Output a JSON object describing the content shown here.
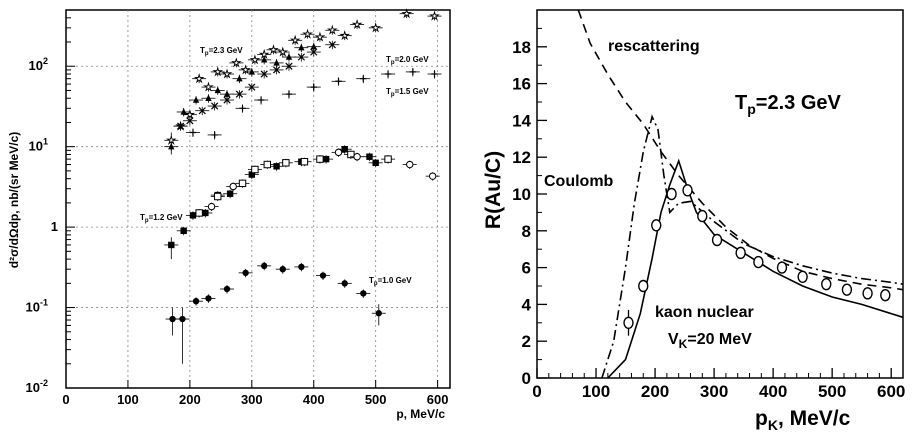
{
  "chart_data": [
    {
      "type": "scatter",
      "xlabel": "p, MeV/c",
      "ylabel": "d²σ/dΩdp, nb/(sr MeV/c)",
      "yscale": "log",
      "xlim": [
        0,
        620
      ],
      "ylim": [
        0.01,
        500
      ],
      "xticks": [
        "0",
        "100",
        "200",
        "300",
        "400",
        "500",
        "600"
      ],
      "yticks": [
        {
          "value": 0.01,
          "base": "10",
          "exp": "-2"
        },
        {
          "value": 0.1,
          "base": "10",
          "exp": "-1"
        },
        {
          "value": 1,
          "base": "1",
          "exp": ""
        },
        {
          "value": 10,
          "base": "10",
          "exp": "1"
        },
        {
          "value": 100,
          "base": "10",
          "exp": "2"
        }
      ],
      "grid": true,
      "series": [
        {
          "name": "Tp=2.3 GeV",
          "marker": "open-star",
          "points": [
            {
              "x": 170,
              "y": 12,
              "lo": 8,
              "hi": 15
            },
            {
              "x": 185,
              "y": 18
            },
            {
              "x": 200,
              "y": 25
            },
            {
              "x": 215,
              "y": 70
            },
            {
              "x": 230,
              "y": 55
            },
            {
              "x": 245,
              "y": 85
            },
            {
              "x": 260,
              "y": 80
            },
            {
              "x": 275,
              "y": 110
            },
            {
              "x": 290,
              "y": 90
            },
            {
              "x": 305,
              "y": 120
            },
            {
              "x": 320,
              "y": 140
            },
            {
              "x": 335,
              "y": 160
            },
            {
              "x": 350,
              "y": 150
            },
            {
              "x": 370,
              "y": 210
            },
            {
              "x": 390,
              "y": 250
            },
            {
              "x": 410,
              "y": 230
            },
            {
              "x": 430,
              "y": 280
            },
            {
              "x": 450,
              "y": 240
            },
            {
              "x": 470,
              "y": 330
            },
            {
              "x": 500,
              "y": 300
            },
            {
              "x": 550,
              "y": 450
            },
            {
              "x": 595,
              "y": 420
            }
          ]
        },
        {
          "name": "Tp=2.0 GeV",
          "marker": "filled-triangle",
          "points": [
            {
              "x": 170,
              "y": 10
            },
            {
              "x": 190,
              "y": 27
            },
            {
              "x": 210,
              "y": 38
            },
            {
              "x": 230,
              "y": 40
            },
            {
              "x": 245,
              "y": 50
            },
            {
              "x": 260,
              "y": 45
            },
            {
              "x": 280,
              "y": 70
            },
            {
              "x": 300,
              "y": 85
            },
            {
              "x": 320,
              "y": 120
            },
            {
              "x": 340,
              "y": 110
            },
            {
              "x": 360,
              "y": 130
            },
            {
              "x": 380,
              "y": 170
            },
            {
              "x": 400,
              "y": 175
            }
          ]
        },
        {
          "name": "Tp=1.5 GeV",
          "marker": "cross",
          "points": [
            {
              "x": 185,
              "y": 18
            },
            {
              "x": 200,
              "y": 21
            },
            {
              "x": 220,
              "y": 28
            },
            {
              "x": 240,
              "y": 32
            },
            {
              "x": 260,
              "y": 38
            },
            {
              "x": 280,
              "y": 45
            },
            {
              "x": 300,
              "y": 55
            },
            {
              "x": 320,
              "y": 80
            },
            {
              "x": 340,
              "y": 90
            },
            {
              "x": 360,
              "y": 100
            },
            {
              "x": 380,
              "y": 130
            },
            {
              "x": 400,
              "y": 150
            },
            {
              "x": 430,
              "y": 185
            }
          ]
        },
        {
          "name": "Tp=1.5 GeV (open cross)",
          "marker": "open-cross",
          "points": [
            {
              "x": 205,
              "y": 15
            },
            {
              "x": 240,
              "y": 14
            },
            {
              "x": 285,
              "y": 30
            },
            {
              "x": 315,
              "y": 38
            },
            {
              "x": 360,
              "y": 45
            },
            {
              "x": 400,
              "y": 55
            },
            {
              "x": 440,
              "y": 65
            },
            {
              "x": 480,
              "y": 70
            },
            {
              "x": 520,
              "y": 80
            },
            {
              "x": 560,
              "y": 85
            },
            {
              "x": 595,
              "y": 80
            }
          ]
        },
        {
          "name": "Tp=1.2 GeV",
          "marker": "filled-square",
          "points": [
            {
              "x": 170,
              "y": 0.6,
              "lo": 0.4,
              "hi": 0.75
            },
            {
              "x": 190,
              "y": 0.9
            },
            {
              "x": 205,
              "y": 1.4
            },
            {
              "x": 225,
              "y": 1.5
            },
            {
              "x": 245,
              "y": 2.5
            },
            {
              "x": 265,
              "y": 2.6
            },
            {
              "x": 300,
              "y": 4.5
            },
            {
              "x": 340,
              "y": 5.7
            },
            {
              "x": 380,
              "y": 6.5
            },
            {
              "x": 420,
              "y": 7.0
            },
            {
              "x": 450,
              "y": 9.3
            },
            {
              "x": 490,
              "y": 7.5
            },
            {
              "x": 500,
              "y": 6.3
            }
          ]
        },
        {
          "name": "Tp=1.2 GeV (open)",
          "marker": "open-square",
          "points": [
            {
              "x": 215,
              "y": 1.5
            },
            {
              "x": 245,
              "y": 2.4
            },
            {
              "x": 285,
              "y": 3.5
            },
            {
              "x": 305,
              "y": 5.2
            },
            {
              "x": 325,
              "y": 6.0
            },
            {
              "x": 355,
              "y": 6.3
            },
            {
              "x": 385,
              "y": 6.5
            },
            {
              "x": 410,
              "y": 7.0
            },
            {
              "x": 460,
              "y": 8.0
            },
            {
              "x": 520,
              "y": 7.0
            }
          ]
        },
        {
          "name": "Tp=1.2 GeV (open circle)",
          "marker": "open-circle",
          "points": [
            {
              "x": 235,
              "y": 1.8
            },
            {
              "x": 270,
              "y": 3.2
            },
            {
              "x": 440,
              "y": 8.5
            },
            {
              "x": 470,
              "y": 7.5
            },
            {
              "x": 555,
              "y": 6.0
            },
            {
              "x": 592,
              "y": 4.3
            }
          ]
        },
        {
          "name": "Tp=1.0 GeV",
          "marker": "filled-circle",
          "points": [
            {
              "x": 172,
              "y": 0.072,
              "lo": 0.045,
              "hi": 0.1
            },
            {
              "x": 188,
              "y": 0.072,
              "lo": 0.02,
              "hi": 0.1
            },
            {
              "x": 210,
              "y": 0.12
            },
            {
              "x": 230,
              "y": 0.13
            },
            {
              "x": 260,
              "y": 0.17
            },
            {
              "x": 290,
              "y": 0.27
            },
            {
              "x": 320,
              "y": 0.33
            },
            {
              "x": 350,
              "y": 0.3
            },
            {
              "x": 380,
              "y": 0.32
            },
            {
              "x": 415,
              "y": 0.25
            },
            {
              "x": 450,
              "y": 0.2
            },
            {
              "x": 480,
              "y": 0.15
            },
            {
              "x": 505,
              "y": 0.085,
              "lo": 0.06,
              "hi": 0.11
            }
          ]
        }
      ],
      "annotations": [
        {
          "text": "Tp=2.3 GeV",
          "x": 175,
          "y": 200
        },
        {
          "text": "Tp=2.0 GeV",
          "x": 440,
          "y": 150
        },
        {
          "text": "Tp=1.5 GeV",
          "x": 440,
          "y": 55
        },
        {
          "text": "Tp=1.2 GeV",
          "x": 95,
          "y": 1.35
        },
        {
          "text": "Tp=1.0 GeV",
          "x": 440,
          "y": 0.28
        }
      ]
    },
    {
      "type": "line",
      "xlabel": "pK, MeV/c",
      "ylabel": "R(Au/C)",
      "xlim": [
        0,
        620
      ],
      "ylim": [
        0,
        20
      ],
      "xticks": [
        "0",
        "100",
        "200",
        "300",
        "400",
        "500",
        "600"
      ],
      "yticks": [
        "0",
        "2",
        "4",
        "6",
        "8",
        "10",
        "12",
        "14",
        "16",
        "18"
      ],
      "grid": false,
      "series": [
        {
          "name": "rescattering",
          "style": "dashed",
          "x": [
            70,
            90,
            120,
            150,
            180,
            210,
            240,
            280,
            320,
            360,
            400,
            450,
            500,
            550,
            600,
            620
          ],
          "y": [
            20,
            18.2,
            16.5,
            15.0,
            13.8,
            12.3,
            11.0,
            9.5,
            8.2,
            7.2,
            6.5,
            5.8,
            5.4,
            5.1,
            4.9,
            4.8
          ]
        },
        {
          "name": "Coulomb",
          "style": "dash-dot",
          "x": [
            110,
            130,
            150,
            165,
            180,
            195,
            205,
            215,
            225,
            240,
            260,
            300,
            350,
            400,
            450,
            500,
            550,
            600,
            620
          ],
          "y": [
            0,
            2,
            6,
            9.5,
            12.3,
            14.2,
            13.5,
            11.0,
            9.0,
            9.5,
            9.6,
            8.5,
            7.3,
            6.6,
            6.1,
            5.7,
            5.4,
            5.2,
            5.1
          ]
        },
        {
          "name": "kaon nuclear",
          "style": "solid",
          "x": [
            120,
            150,
            175,
            195,
            210,
            225,
            240,
            255,
            270,
            300,
            350,
            400,
            450,
            500,
            550,
            600,
            620
          ],
          "y": [
            0,
            1.0,
            3.5,
            6.5,
            9.0,
            10.5,
            11.8,
            10.3,
            9.0,
            7.8,
            6.8,
            5.8,
            5.0,
            4.4,
            4.0,
            3.5,
            3.3
          ]
        }
      ],
      "data_points": [
        {
          "x": 155,
          "y": 3.0,
          "lo": 2.3,
          "hi": 3.7
        },
        {
          "x": 180,
          "y": 5.0
        },
        {
          "x": 202,
          "y": 8.3
        },
        {
          "x": 228,
          "y": 10.0
        },
        {
          "x": 255,
          "y": 10.2
        },
        {
          "x": 280,
          "y": 8.8
        },
        {
          "x": 305,
          "y": 7.5
        },
        {
          "x": 345,
          "y": 6.8
        },
        {
          "x": 375,
          "y": 6.3
        },
        {
          "x": 415,
          "y": 6.0
        },
        {
          "x": 450,
          "y": 5.5
        },
        {
          "x": 490,
          "y": 5.1
        },
        {
          "x": 525,
          "y": 4.8
        },
        {
          "x": 560,
          "y": 4.6
        },
        {
          "x": 590,
          "y": 4.5
        }
      ],
      "labels": {
        "rescattering": "rescattering",
        "coulomb": "Coulomb",
        "kaon_nuclear": "kaon nuclear",
        "vk": "V",
        "vk_sub": "K",
        "vk_rest": "=20 MeV",
        "tp": "T",
        "tp_sub": "p",
        "tp_rest": "=2.3 GeV",
        "ylabel": "R(Au/C)",
        "xlabel_main": "p",
        "xlabel_sub": "K",
        "xlabel_rest": ", MeV/c"
      }
    }
  ],
  "left_labels": {
    "xlabel": "p, MeV/c",
    "ylabel": "d²σ/dΩdp, nb/(sr MeV/c)",
    "ann_23": "T",
    "ann_23_sub": "p",
    "ann_23_rest": "=2.3 GeV",
    "ann_20": "T",
    "ann_20_sub": "p",
    "ann_20_rest": "=2.0 GeV",
    "ann_15": "T",
    "ann_15_sub": "p",
    "ann_15_rest": "=1.5 GeV",
    "ann_12": "T",
    "ann_12_sub": "p",
    "ann_12_rest": "=1.2 GeV",
    "ann_10": "T",
    "ann_10_sub": "p",
    "ann_10_rest": "=1.0 GeV"
  }
}
